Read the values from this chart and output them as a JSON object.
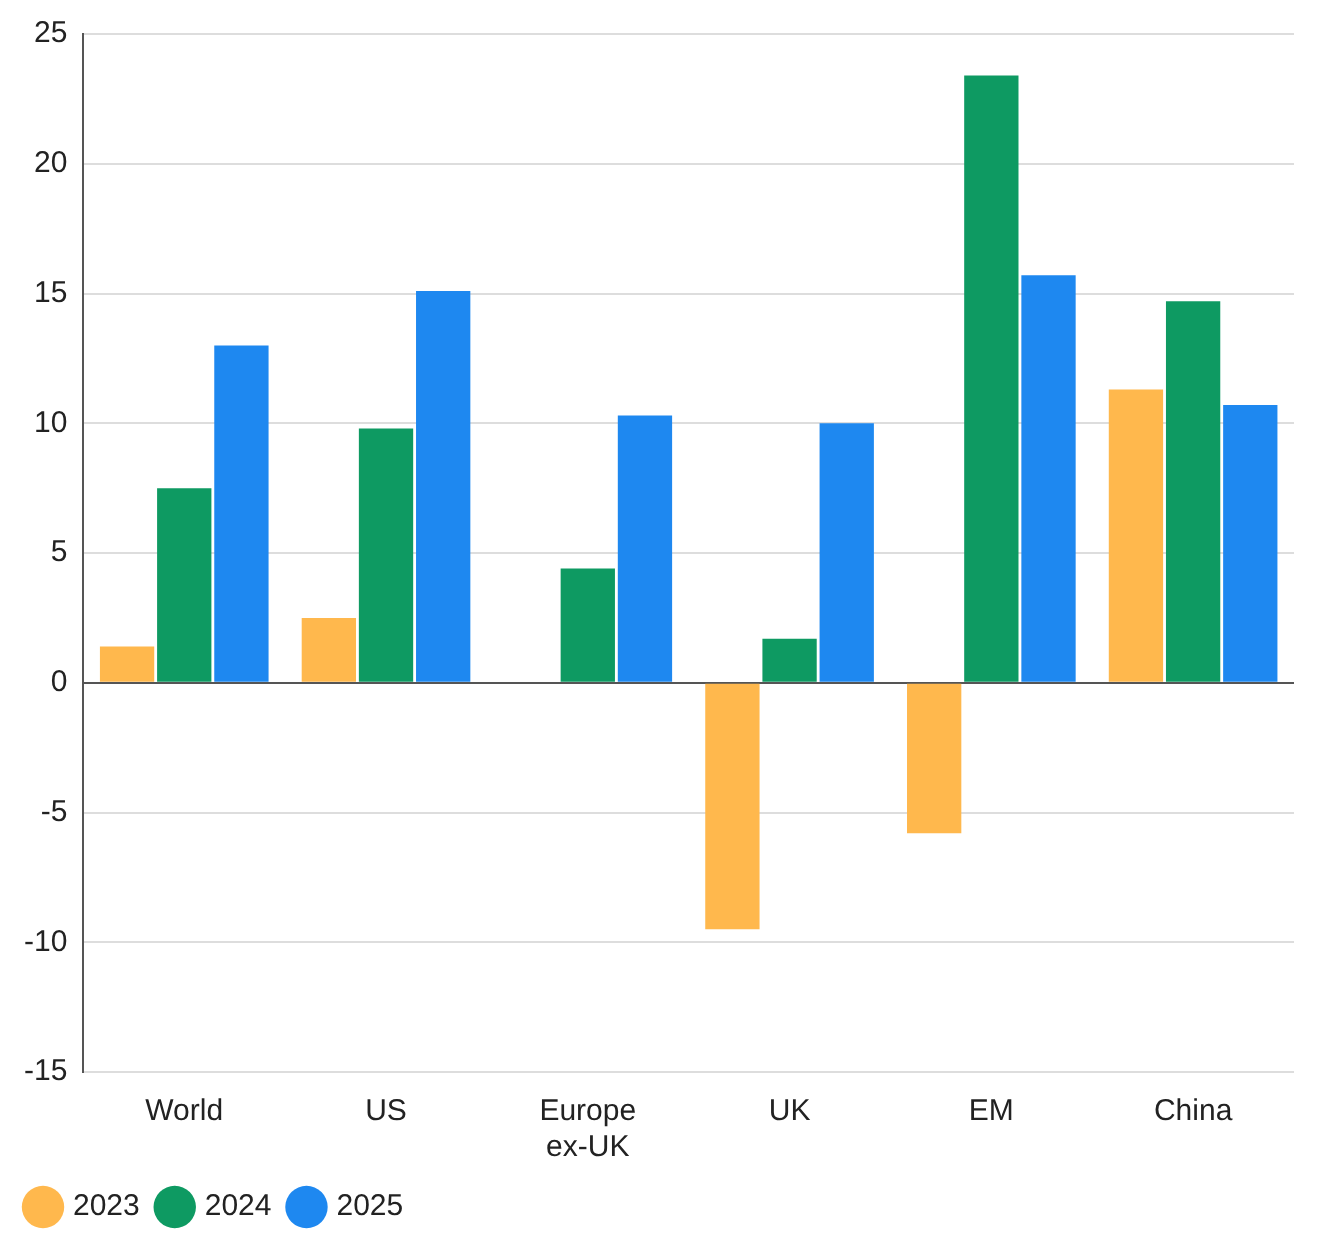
{
  "chart_data": {
    "type": "bar",
    "categories": [
      "World",
      "US",
      "Europe ex-UK",
      "UK",
      "EM",
      "China"
    ],
    "series": [
      {
        "name": "2023",
        "color": "#ffb84d",
        "values": [
          1.4,
          2.5,
          null,
          -9.5,
          -5.8,
          11.3
        ]
      },
      {
        "name": "2024",
        "color": "#0e9a62",
        "values": [
          7.5,
          9.8,
          4.4,
          1.7,
          23.4,
          14.7
        ]
      },
      {
        "name": "2025",
        "color": "#1e88f0",
        "values": [
          13.0,
          15.1,
          10.3,
          10.0,
          15.7,
          10.7
        ]
      }
    ],
    "ylim": [
      -15,
      25
    ],
    "yticks": [
      -15,
      -10,
      -5,
      0,
      5,
      10,
      15,
      20,
      25
    ],
    "grid": "y",
    "legend": "bottom left"
  }
}
